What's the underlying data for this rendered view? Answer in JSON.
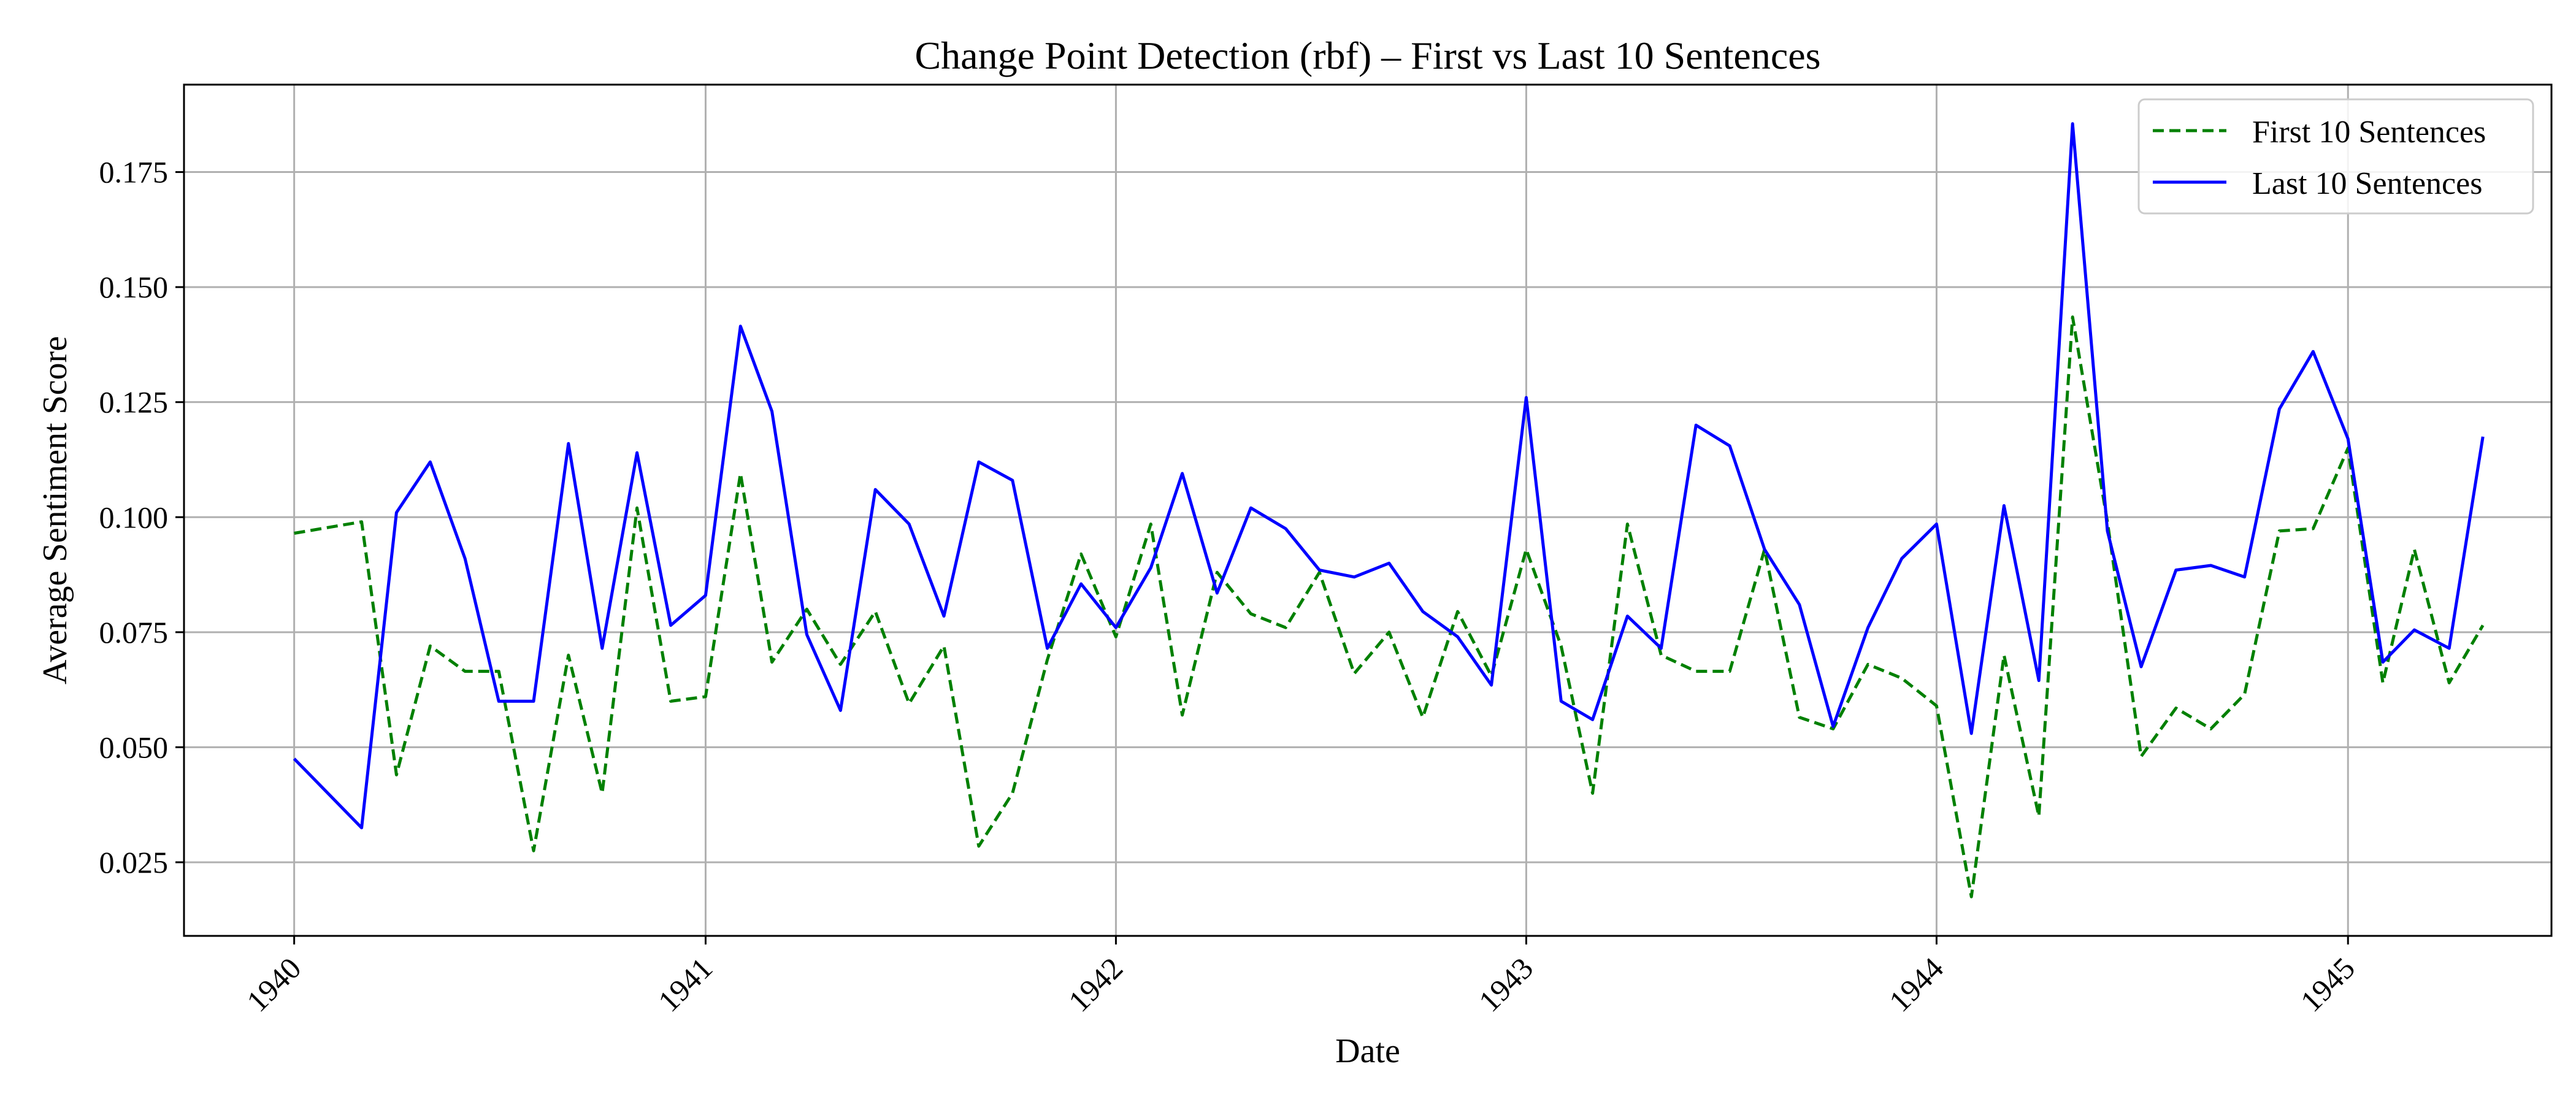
{
  "chart_data": {
    "type": "line",
    "title": "Change Point Detection (rbf) – First vs Last 10 Sentences",
    "xlabel": "Date",
    "ylabel": "Average Sentiment Score",
    "x_tick_labels": [
      "1940",
      "1941",
      "1942",
      "1943",
      "1944",
      "1945"
    ],
    "y_tick_labels": [
      "0.025",
      "0.050",
      "0.075",
      "0.100",
      "0.125",
      "0.150",
      "0.175"
    ],
    "xlim": [
      "1939-09-25",
      "1945-07-01"
    ],
    "ylim": [
      0.009,
      0.194
    ],
    "grid": true,
    "legend_position": "top-right",
    "x": [
      "1940-01-01",
      "1940-03-01",
      "1940-04-01",
      "1940-05-01",
      "1940-06-01",
      "1940-07-01",
      "1940-08-01",
      "1940-09-01",
      "1940-10-01",
      "1940-11-01",
      "1940-12-01",
      "1941-01-01",
      "1941-02-01",
      "1941-03-01",
      "1941-04-01",
      "1941-05-01",
      "1941-06-01",
      "1941-07-01",
      "1941-08-01",
      "1941-09-01",
      "1941-10-01",
      "1941-11-01",
      "1941-12-01",
      "1942-01-01",
      "1942-02-01",
      "1942-03-01",
      "1942-04-01",
      "1942-05-01",
      "1942-06-01",
      "1942-07-01",
      "1942-08-01",
      "1942-09-01",
      "1942-10-01",
      "1942-11-01",
      "1942-12-01",
      "1943-01-01",
      "1943-02-01",
      "1943-03-01",
      "1943-04-01",
      "1943-05-01",
      "1943-06-01",
      "1943-07-01",
      "1943-08-01",
      "1943-09-01",
      "1943-10-01",
      "1943-11-01",
      "1943-12-01",
      "1944-01-01",
      "1944-02-01",
      "1944-03-01",
      "1944-04-01",
      "1944-05-01",
      "1944-06-01",
      "1944-07-01",
      "1944-08-01",
      "1944-09-01",
      "1944-10-01",
      "1944-11-01",
      "1944-12-01",
      "1945-01-01",
      "1945-02-01",
      "1945-03-01",
      "1945-04-01",
      "1945-05-01"
    ],
    "series": [
      {
        "name": "First 10 Sentences",
        "color": "#008000",
        "style": "dashed",
        "values": [
          0.0965,
          0.099,
          0.044,
          0.072,
          0.0665,
          0.0665,
          0.0275,
          0.07,
          0.04,
          0.102,
          0.06,
          0.061,
          0.1095,
          0.0685,
          0.08,
          0.068,
          0.0795,
          0.0595,
          0.072,
          0.0285,
          0.04,
          0.069,
          0.092,
          0.074,
          0.0985,
          0.057,
          0.088,
          0.079,
          0.076,
          0.088,
          0.066,
          0.075,
          0.0565,
          0.0795,
          0.0655,
          0.093,
          0.072,
          0.04,
          0.0985,
          0.07,
          0.0665,
          0.0665,
          0.093,
          0.0565,
          0.054,
          0.068,
          0.065,
          0.059,
          0.0175,
          0.07,
          0.035,
          0.1435,
          0.099,
          0.048,
          0.0585,
          0.054,
          0.0615,
          0.097,
          0.0975,
          0.115,
          0.064,
          0.093,
          0.064,
          0.0765
        ]
      },
      {
        "name": "Last 10 Sentences",
        "color": "#0000ff",
        "style": "solid",
        "values": [
          0.0475,
          0.0325,
          0.101,
          0.112,
          0.091,
          0.06,
          0.06,
          0.116,
          0.0715,
          0.114,
          0.0765,
          0.083,
          0.1415,
          0.123,
          0.0745,
          0.058,
          0.106,
          0.0985,
          0.0785,
          0.112,
          0.108,
          0.0715,
          0.0855,
          0.076,
          0.089,
          0.1095,
          0.0835,
          0.102,
          0.0975,
          0.0885,
          0.087,
          0.09,
          0.0795,
          0.074,
          0.0635,
          0.126,
          0.06,
          0.056,
          0.0785,
          0.0715,
          0.12,
          0.1155,
          0.093,
          0.081,
          0.0545,
          0.076,
          0.091,
          0.0985,
          0.053,
          0.1025,
          0.0645,
          0.1855,
          0.097,
          0.0675,
          0.0885,
          0.0895,
          0.087,
          0.1235,
          0.136,
          0.117,
          0.0685,
          0.0755,
          0.0715,
          0.1175
        ]
      }
    ]
  }
}
